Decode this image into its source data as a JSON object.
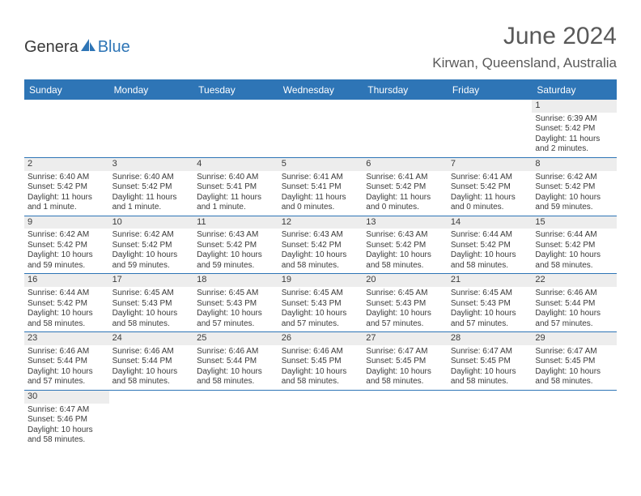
{
  "logo": {
    "part1": "Genera",
    "part2": "Blue"
  },
  "title": "June 2024",
  "location": "Kirwan, Queensland, Australia",
  "colors": {
    "accent": "#2e75b6",
    "daynum_bg": "#ededed",
    "text": "#3a3a3a",
    "title_text": "#595959",
    "background": "#ffffff"
  },
  "daynames": [
    "Sunday",
    "Monday",
    "Tuesday",
    "Wednesday",
    "Thursday",
    "Friday",
    "Saturday"
  ],
  "weeks": [
    [
      null,
      null,
      null,
      null,
      null,
      null,
      {
        "n": "1",
        "sr": "Sunrise: 6:39 AM",
        "ss": "Sunset: 5:42 PM",
        "dl1": "Daylight: 11 hours",
        "dl2": "and 2 minutes."
      }
    ],
    [
      {
        "n": "2",
        "sr": "Sunrise: 6:40 AM",
        "ss": "Sunset: 5:42 PM",
        "dl1": "Daylight: 11 hours",
        "dl2": "and 1 minute."
      },
      {
        "n": "3",
        "sr": "Sunrise: 6:40 AM",
        "ss": "Sunset: 5:42 PM",
        "dl1": "Daylight: 11 hours",
        "dl2": "and 1 minute."
      },
      {
        "n": "4",
        "sr": "Sunrise: 6:40 AM",
        "ss": "Sunset: 5:41 PM",
        "dl1": "Daylight: 11 hours",
        "dl2": "and 1 minute."
      },
      {
        "n": "5",
        "sr": "Sunrise: 6:41 AM",
        "ss": "Sunset: 5:41 PM",
        "dl1": "Daylight: 11 hours",
        "dl2": "and 0 minutes."
      },
      {
        "n": "6",
        "sr": "Sunrise: 6:41 AM",
        "ss": "Sunset: 5:42 PM",
        "dl1": "Daylight: 11 hours",
        "dl2": "and 0 minutes."
      },
      {
        "n": "7",
        "sr": "Sunrise: 6:41 AM",
        "ss": "Sunset: 5:42 PM",
        "dl1": "Daylight: 11 hours",
        "dl2": "and 0 minutes."
      },
      {
        "n": "8",
        "sr": "Sunrise: 6:42 AM",
        "ss": "Sunset: 5:42 PM",
        "dl1": "Daylight: 10 hours",
        "dl2": "and 59 minutes."
      }
    ],
    [
      {
        "n": "9",
        "sr": "Sunrise: 6:42 AM",
        "ss": "Sunset: 5:42 PM",
        "dl1": "Daylight: 10 hours",
        "dl2": "and 59 minutes."
      },
      {
        "n": "10",
        "sr": "Sunrise: 6:42 AM",
        "ss": "Sunset: 5:42 PM",
        "dl1": "Daylight: 10 hours",
        "dl2": "and 59 minutes."
      },
      {
        "n": "11",
        "sr": "Sunrise: 6:43 AM",
        "ss": "Sunset: 5:42 PM",
        "dl1": "Daylight: 10 hours",
        "dl2": "and 59 minutes."
      },
      {
        "n": "12",
        "sr": "Sunrise: 6:43 AM",
        "ss": "Sunset: 5:42 PM",
        "dl1": "Daylight: 10 hours",
        "dl2": "and 58 minutes."
      },
      {
        "n": "13",
        "sr": "Sunrise: 6:43 AM",
        "ss": "Sunset: 5:42 PM",
        "dl1": "Daylight: 10 hours",
        "dl2": "and 58 minutes."
      },
      {
        "n": "14",
        "sr": "Sunrise: 6:44 AM",
        "ss": "Sunset: 5:42 PM",
        "dl1": "Daylight: 10 hours",
        "dl2": "and 58 minutes."
      },
      {
        "n": "15",
        "sr": "Sunrise: 6:44 AM",
        "ss": "Sunset: 5:42 PM",
        "dl1": "Daylight: 10 hours",
        "dl2": "and 58 minutes."
      }
    ],
    [
      {
        "n": "16",
        "sr": "Sunrise: 6:44 AM",
        "ss": "Sunset: 5:42 PM",
        "dl1": "Daylight: 10 hours",
        "dl2": "and 58 minutes."
      },
      {
        "n": "17",
        "sr": "Sunrise: 6:45 AM",
        "ss": "Sunset: 5:43 PM",
        "dl1": "Daylight: 10 hours",
        "dl2": "and 58 minutes."
      },
      {
        "n": "18",
        "sr": "Sunrise: 6:45 AM",
        "ss": "Sunset: 5:43 PM",
        "dl1": "Daylight: 10 hours",
        "dl2": "and 57 minutes."
      },
      {
        "n": "19",
        "sr": "Sunrise: 6:45 AM",
        "ss": "Sunset: 5:43 PM",
        "dl1": "Daylight: 10 hours",
        "dl2": "and 57 minutes."
      },
      {
        "n": "20",
        "sr": "Sunrise: 6:45 AM",
        "ss": "Sunset: 5:43 PM",
        "dl1": "Daylight: 10 hours",
        "dl2": "and 57 minutes."
      },
      {
        "n": "21",
        "sr": "Sunrise: 6:45 AM",
        "ss": "Sunset: 5:43 PM",
        "dl1": "Daylight: 10 hours",
        "dl2": "and 57 minutes."
      },
      {
        "n": "22",
        "sr": "Sunrise: 6:46 AM",
        "ss": "Sunset: 5:44 PM",
        "dl1": "Daylight: 10 hours",
        "dl2": "and 57 minutes."
      }
    ],
    [
      {
        "n": "23",
        "sr": "Sunrise: 6:46 AM",
        "ss": "Sunset: 5:44 PM",
        "dl1": "Daylight: 10 hours",
        "dl2": "and 57 minutes."
      },
      {
        "n": "24",
        "sr": "Sunrise: 6:46 AM",
        "ss": "Sunset: 5:44 PM",
        "dl1": "Daylight: 10 hours",
        "dl2": "and 58 minutes."
      },
      {
        "n": "25",
        "sr": "Sunrise: 6:46 AM",
        "ss": "Sunset: 5:44 PM",
        "dl1": "Daylight: 10 hours",
        "dl2": "and 58 minutes."
      },
      {
        "n": "26",
        "sr": "Sunrise: 6:46 AM",
        "ss": "Sunset: 5:45 PM",
        "dl1": "Daylight: 10 hours",
        "dl2": "and 58 minutes."
      },
      {
        "n": "27",
        "sr": "Sunrise: 6:47 AM",
        "ss": "Sunset: 5:45 PM",
        "dl1": "Daylight: 10 hours",
        "dl2": "and 58 minutes."
      },
      {
        "n": "28",
        "sr": "Sunrise: 6:47 AM",
        "ss": "Sunset: 5:45 PM",
        "dl1": "Daylight: 10 hours",
        "dl2": "and 58 minutes."
      },
      {
        "n": "29",
        "sr": "Sunrise: 6:47 AM",
        "ss": "Sunset: 5:45 PM",
        "dl1": "Daylight: 10 hours",
        "dl2": "and 58 minutes."
      }
    ],
    [
      {
        "n": "30",
        "sr": "Sunrise: 6:47 AM",
        "ss": "Sunset: 5:46 PM",
        "dl1": "Daylight: 10 hours",
        "dl2": "and 58 minutes."
      },
      null,
      null,
      null,
      null,
      null,
      null
    ]
  ]
}
